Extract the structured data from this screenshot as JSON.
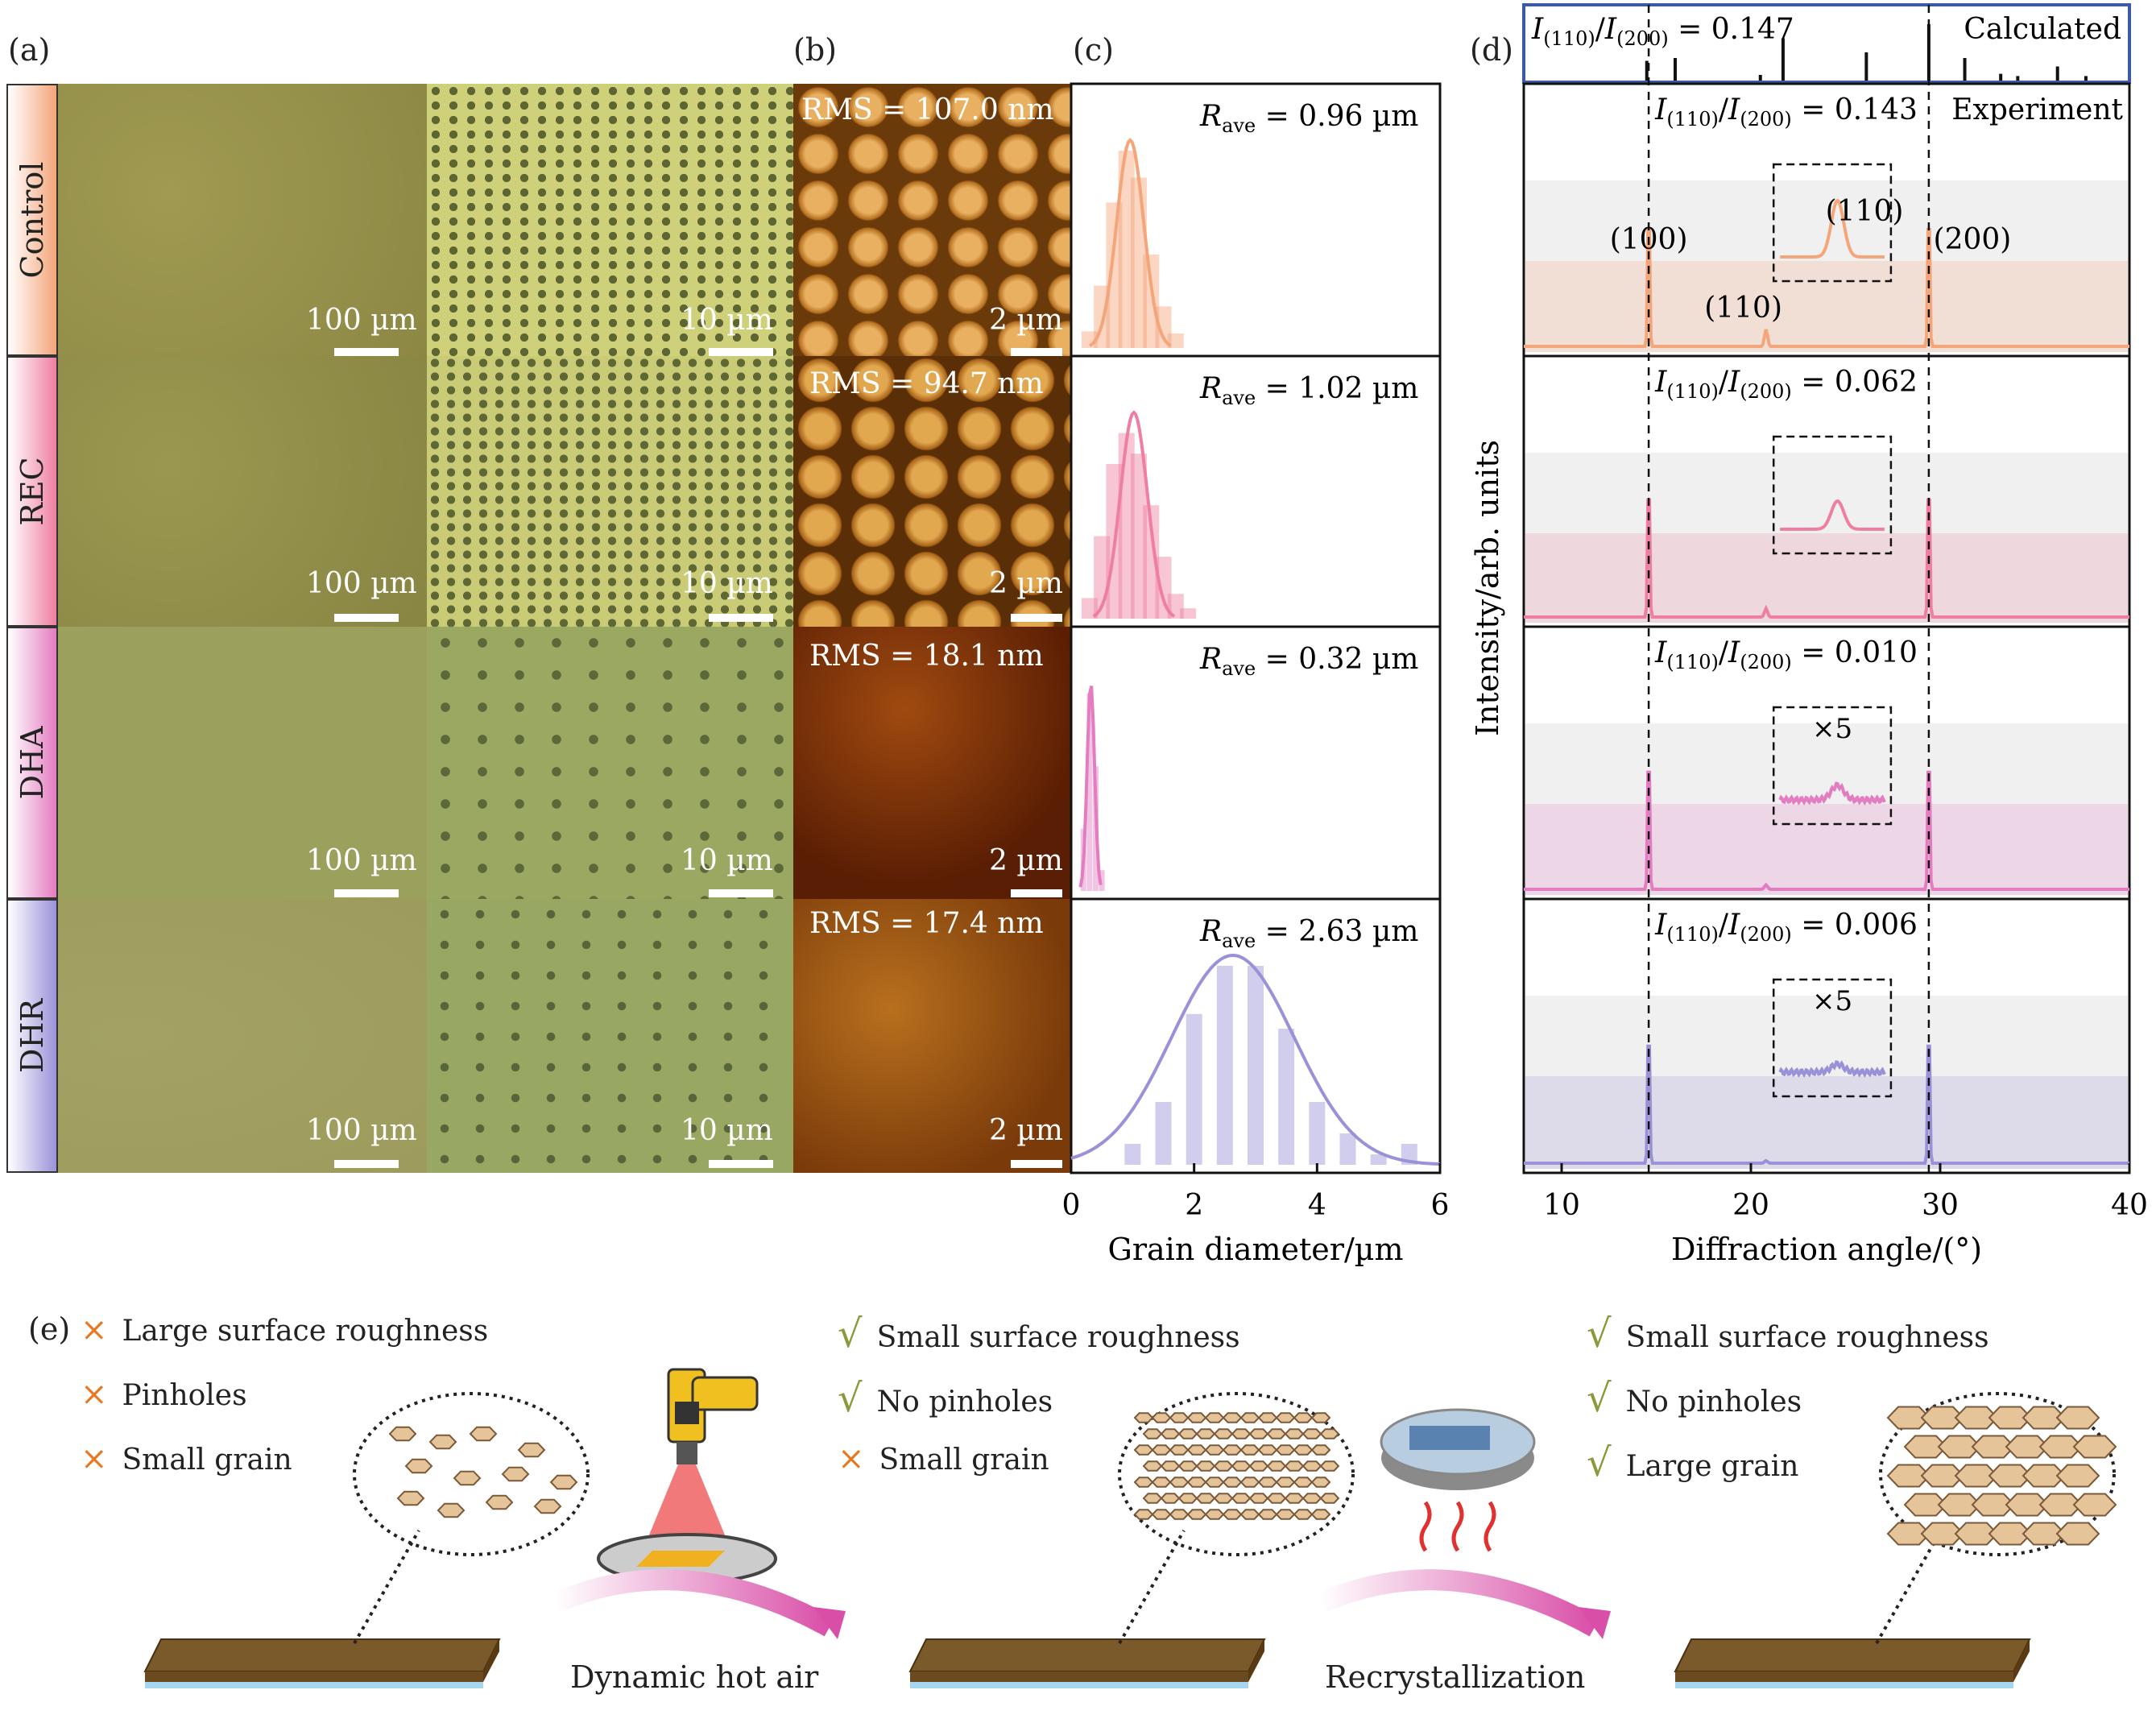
{
  "panel_labels": {
    "a": "(a)",
    "b": "(b)",
    "c": "(c)",
    "d": "(d)",
    "e": "(e)"
  },
  "rows": [
    {
      "name": "Control",
      "color": "#f4a57a",
      "scale_100": "100 µm",
      "scale_10": "10 µm",
      "rms": "RMS = 107.0 nm",
      "afm_scale": "2 µm",
      "rave": "= 0.96 µm",
      "ratio": "= 0.143"
    },
    {
      "name": "REC",
      "color": "#ee7fa0",
      "scale_100": "100 µm",
      "scale_10": "10 µm",
      "rms": "RMS = 94.7 nm",
      "afm_scale": "2 µm",
      "rave": "= 1.02 µm",
      "ratio": "= 0.062"
    },
    {
      "name": "DHA",
      "color": "#e37cc0",
      "scale_100": "100 µm",
      "scale_10": "10 µm",
      "rms": "RMS = 18.1 nm",
      "afm_scale": "2 µm",
      "rave": "= 0.32 µm",
      "ratio": "= 0.010"
    },
    {
      "name": "DHR",
      "color": "#9a92d8",
      "scale_100": "100 µm",
      "scale_10": "10 µm",
      "rms": "RMS = 17.4 nm",
      "afm_scale": "2 µm",
      "rave": "= 2.63 µm",
      "ratio": "= 0.006"
    }
  ],
  "chart_data": [
    {
      "type": "bar",
      "panel": "c",
      "xlabel": "Grain diameter/µm",
      "xlim": [
        0,
        6
      ],
      "xticks": [
        "0",
        "2",
        "4",
        "6"
      ],
      "series": [
        {
          "name": "Control",
          "rave_um": 0.96,
          "x": [
            0.3,
            0.5,
            0.7,
            0.9,
            1.1,
            1.3,
            1.5,
            1.7
          ],
          "values": [
            0.08,
            0.3,
            0.7,
            0.95,
            0.82,
            0.45,
            0.2,
            0.07
          ]
        },
        {
          "name": "REC",
          "rave_um": 1.02,
          "x": [
            0.3,
            0.5,
            0.7,
            0.9,
            1.1,
            1.3,
            1.5,
            1.7,
            1.9
          ],
          "values": [
            0.1,
            0.4,
            0.75,
            0.9,
            0.8,
            0.55,
            0.3,
            0.12,
            0.05
          ]
        },
        {
          "name": "DHA",
          "rave_um": 0.32,
          "x": [
            0.2,
            0.3,
            0.4,
            0.5
          ],
          "values": [
            0.3,
            0.95,
            0.6,
            0.1
          ]
        },
        {
          "name": "DHR",
          "rave_um": 2.63,
          "x": [
            1,
            1.5,
            2,
            2.5,
            3,
            3.5,
            4,
            4.5,
            5,
            5.5
          ],
          "values": [
            0.1,
            0.3,
            0.72,
            0.95,
            0.95,
            0.65,
            0.3,
            0.15,
            0.05,
            0.1
          ]
        }
      ]
    },
    {
      "type": "line",
      "panel": "d",
      "xlabel": "Diffraction angle/(°)",
      "ylabel": "Intensity/arb. units",
      "xlim": [
        8,
        40
      ],
      "xticks": [
        "10",
        "20",
        "30",
        "40"
      ],
      "calculated_label": "Calculated",
      "experiment_label": "Experiment",
      "calculated_ratio": "= 0.147",
      "peak_labels": [
        "(100)",
        "(110)",
        "(110)",
        "(200)"
      ],
      "magnification": "×5",
      "peaks_deg": [
        14.6,
        20.8,
        29.4
      ],
      "calculated_sticks_deg": [
        14.5,
        16.0,
        20.5,
        21.7,
        26.1,
        29.4,
        31.3,
        33.2,
        34.1,
        36.2,
        37.7
      ],
      "calculated_sticks_int": [
        0.35,
        0.4,
        0.1,
        0.75,
        0.5,
        1.0,
        0.4,
        0.12,
        0.08,
        0.25,
        0.08
      ],
      "series": [
        {
          "name": "Control",
          "ratio": 0.143,
          "peak110_rel": 0.7
        },
        {
          "name": "REC",
          "ratio": 0.062,
          "peak110_rel": 0.35
        },
        {
          "name": "DHA",
          "ratio": 0.01,
          "peak110_rel": 0.18
        },
        {
          "name": "DHR",
          "ratio": 0.006,
          "peak110_rel": 0.1
        }
      ]
    }
  ],
  "schematic": {
    "stage1": {
      "items": [
        {
          "mark": "×",
          "text": "Large surface roughness"
        },
        {
          "mark": "×",
          "text": "Pinholes"
        },
        {
          "mark": "×",
          "text": "Small grain"
        }
      ]
    },
    "stage2": {
      "items": [
        {
          "mark": "√",
          "text": "Small surface roughness"
        },
        {
          "mark": "√",
          "text": "No pinholes"
        },
        {
          "mark": "×",
          "text": "Small grain"
        }
      ]
    },
    "stage3": {
      "items": [
        {
          "mark": "√",
          "text": "Small surface roughness"
        },
        {
          "mark": "√",
          "text": "No pinholes"
        },
        {
          "mark": "√",
          "text": "Large grain"
        }
      ]
    },
    "arrow1": "Dynamic hot air",
    "arrow2": "Recrystallization"
  }
}
